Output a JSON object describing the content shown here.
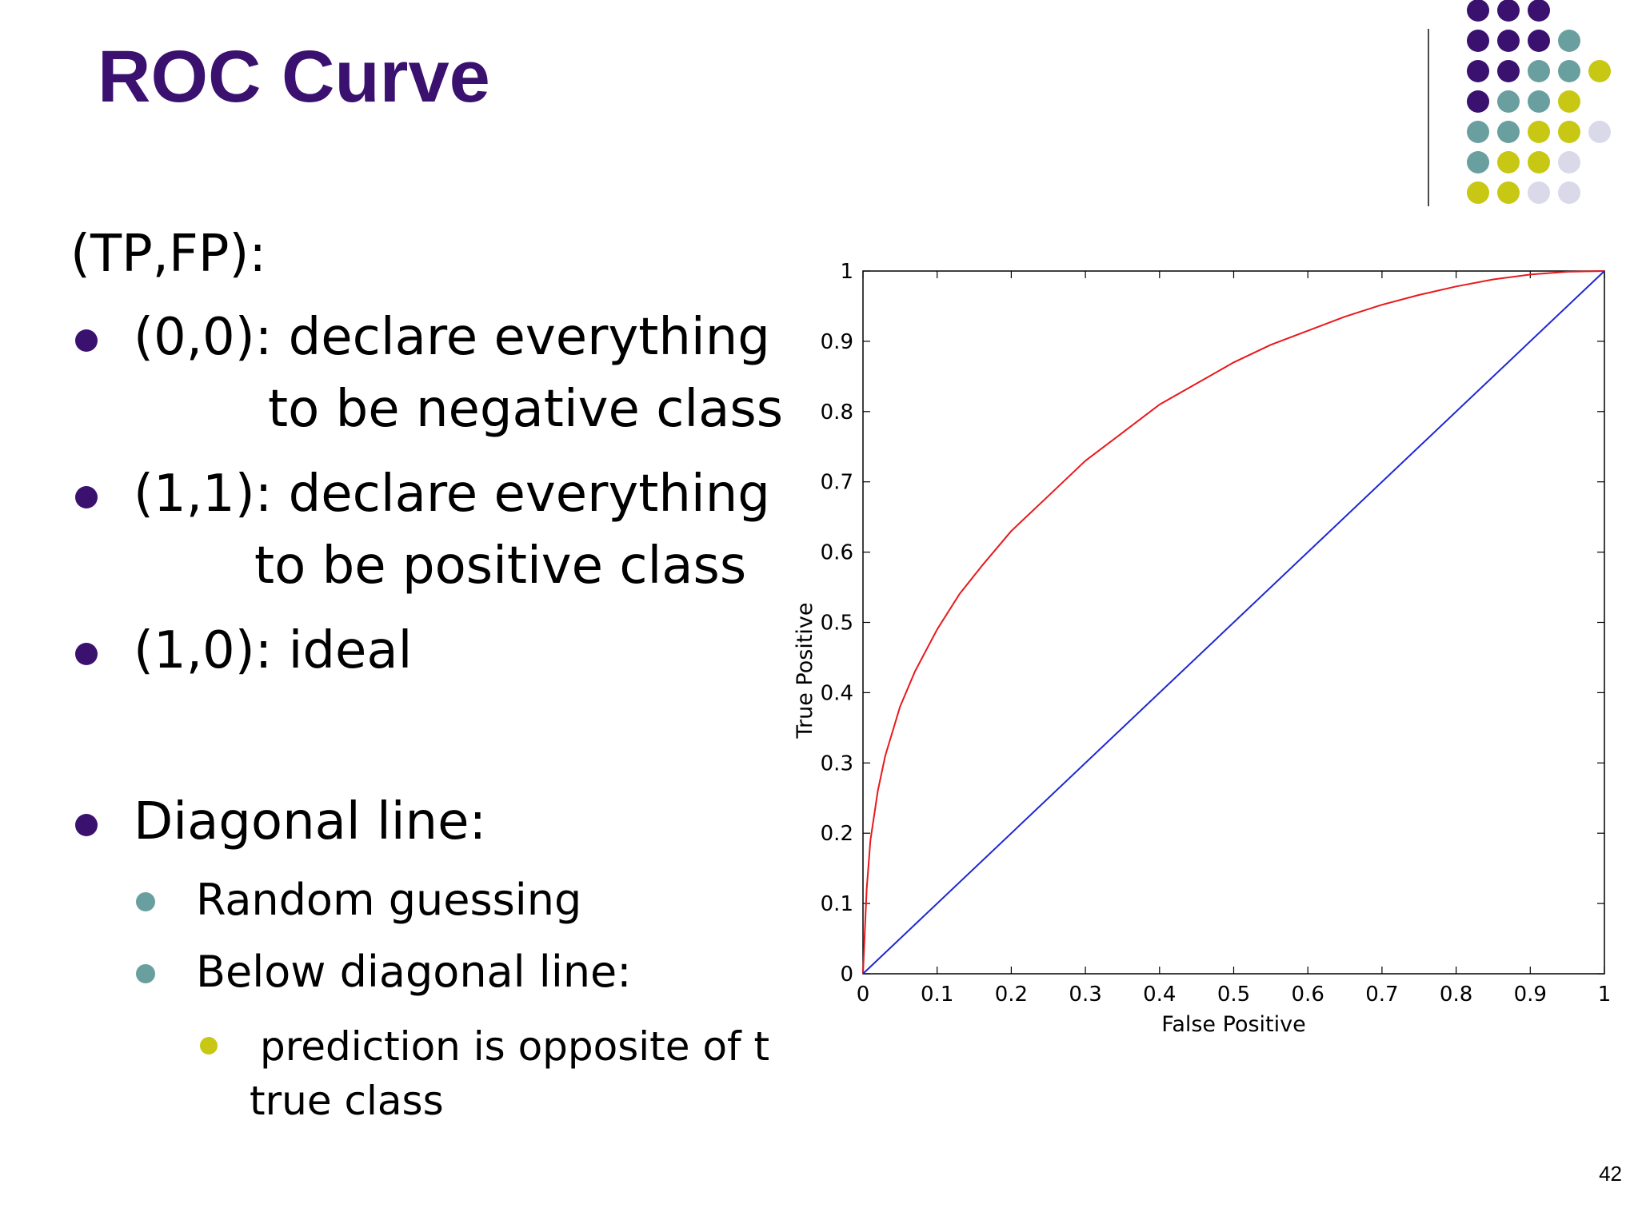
{
  "slide": {
    "title": "ROC Curve",
    "page_number": "42"
  },
  "content": {
    "heading": "(TP,FP):",
    "bullets": [
      {
        "line1": "(0,0): declare everything",
        "line2": "to be negative class"
      },
      {
        "line1": "(1,1): declare everything",
        "line2": "to be positive class"
      },
      {
        "line1": "(1,0): ideal",
        "line2": ""
      }
    ],
    "diagonal": {
      "label": "Diagonal line:",
      "sub1": "Random guessing",
      "sub2": "Below diagonal line:",
      "sub3_line1": "prediction is opposite of the",
      "sub3_line2": "true class"
    }
  },
  "colors": {
    "title": "#3b1170",
    "bullet_l1": "#3b1170",
    "bullet_l2": "#6a9fa0",
    "bullet_l3": "#c8c814",
    "dot_purple": "#3b1170",
    "dot_teal": "#6a9fa0",
    "dot_yellow": "#c8c814",
    "dot_lavender": "#d9d9ea"
  },
  "decoration": {
    "dot_grid": [
      [
        "purple",
        "purple",
        "purple"
      ],
      [
        "purple",
        "purple",
        "purple",
        "teal"
      ],
      [
        "purple",
        "purple",
        "teal",
        "teal",
        "yellow"
      ],
      [
        "purple",
        "teal",
        "teal",
        "yellow"
      ],
      [
        "teal",
        "teal",
        "yellow",
        "yellow",
        "lavender"
      ],
      [
        "teal",
        "yellow",
        "yellow",
        "lavender"
      ],
      [
        "yellow",
        "yellow",
        "lavender",
        "lavender"
      ]
    ]
  },
  "chart_data": {
    "type": "line",
    "xlabel": "False Positive",
    "ylabel": "True Positive",
    "xlim": [
      0,
      1
    ],
    "ylim": [
      0,
      1
    ],
    "xticks": [
      0,
      0.1,
      0.2,
      0.3,
      0.4,
      0.5,
      0.6,
      0.7,
      0.8,
      0.9,
      1
    ],
    "yticks": [
      0,
      0.1,
      0.2,
      0.3,
      0.4,
      0.5,
      0.6,
      0.7,
      0.8,
      0.9,
      1
    ],
    "grid": false,
    "series": [
      {
        "color": "#e8191c",
        "x": [
          0,
          0.002,
          0.005,
          0.01,
          0.02,
          0.03,
          0.05,
          0.07,
          0.1,
          0.13,
          0.16,
          0.2,
          0.25,
          0.3,
          0.35,
          0.4,
          0.45,
          0.5,
          0.55,
          0.6,
          0.65,
          0.7,
          0.75,
          0.8,
          0.85,
          0.9,
          0.95,
          1
        ],
        "y": [
          0,
          0.05,
          0.12,
          0.19,
          0.26,
          0.31,
          0.38,
          0.43,
          0.49,
          0.54,
          0.58,
          0.63,
          0.68,
          0.73,
          0.77,
          0.81,
          0.84,
          0.87,
          0.895,
          0.915,
          0.935,
          0.952,
          0.966,
          0.978,
          0.988,
          0.995,
          0.999,
          1
        ]
      },
      {
        "color": "#1e28d2",
        "x": [
          0,
          1
        ],
        "y": [
          0,
          1
        ]
      }
    ]
  }
}
